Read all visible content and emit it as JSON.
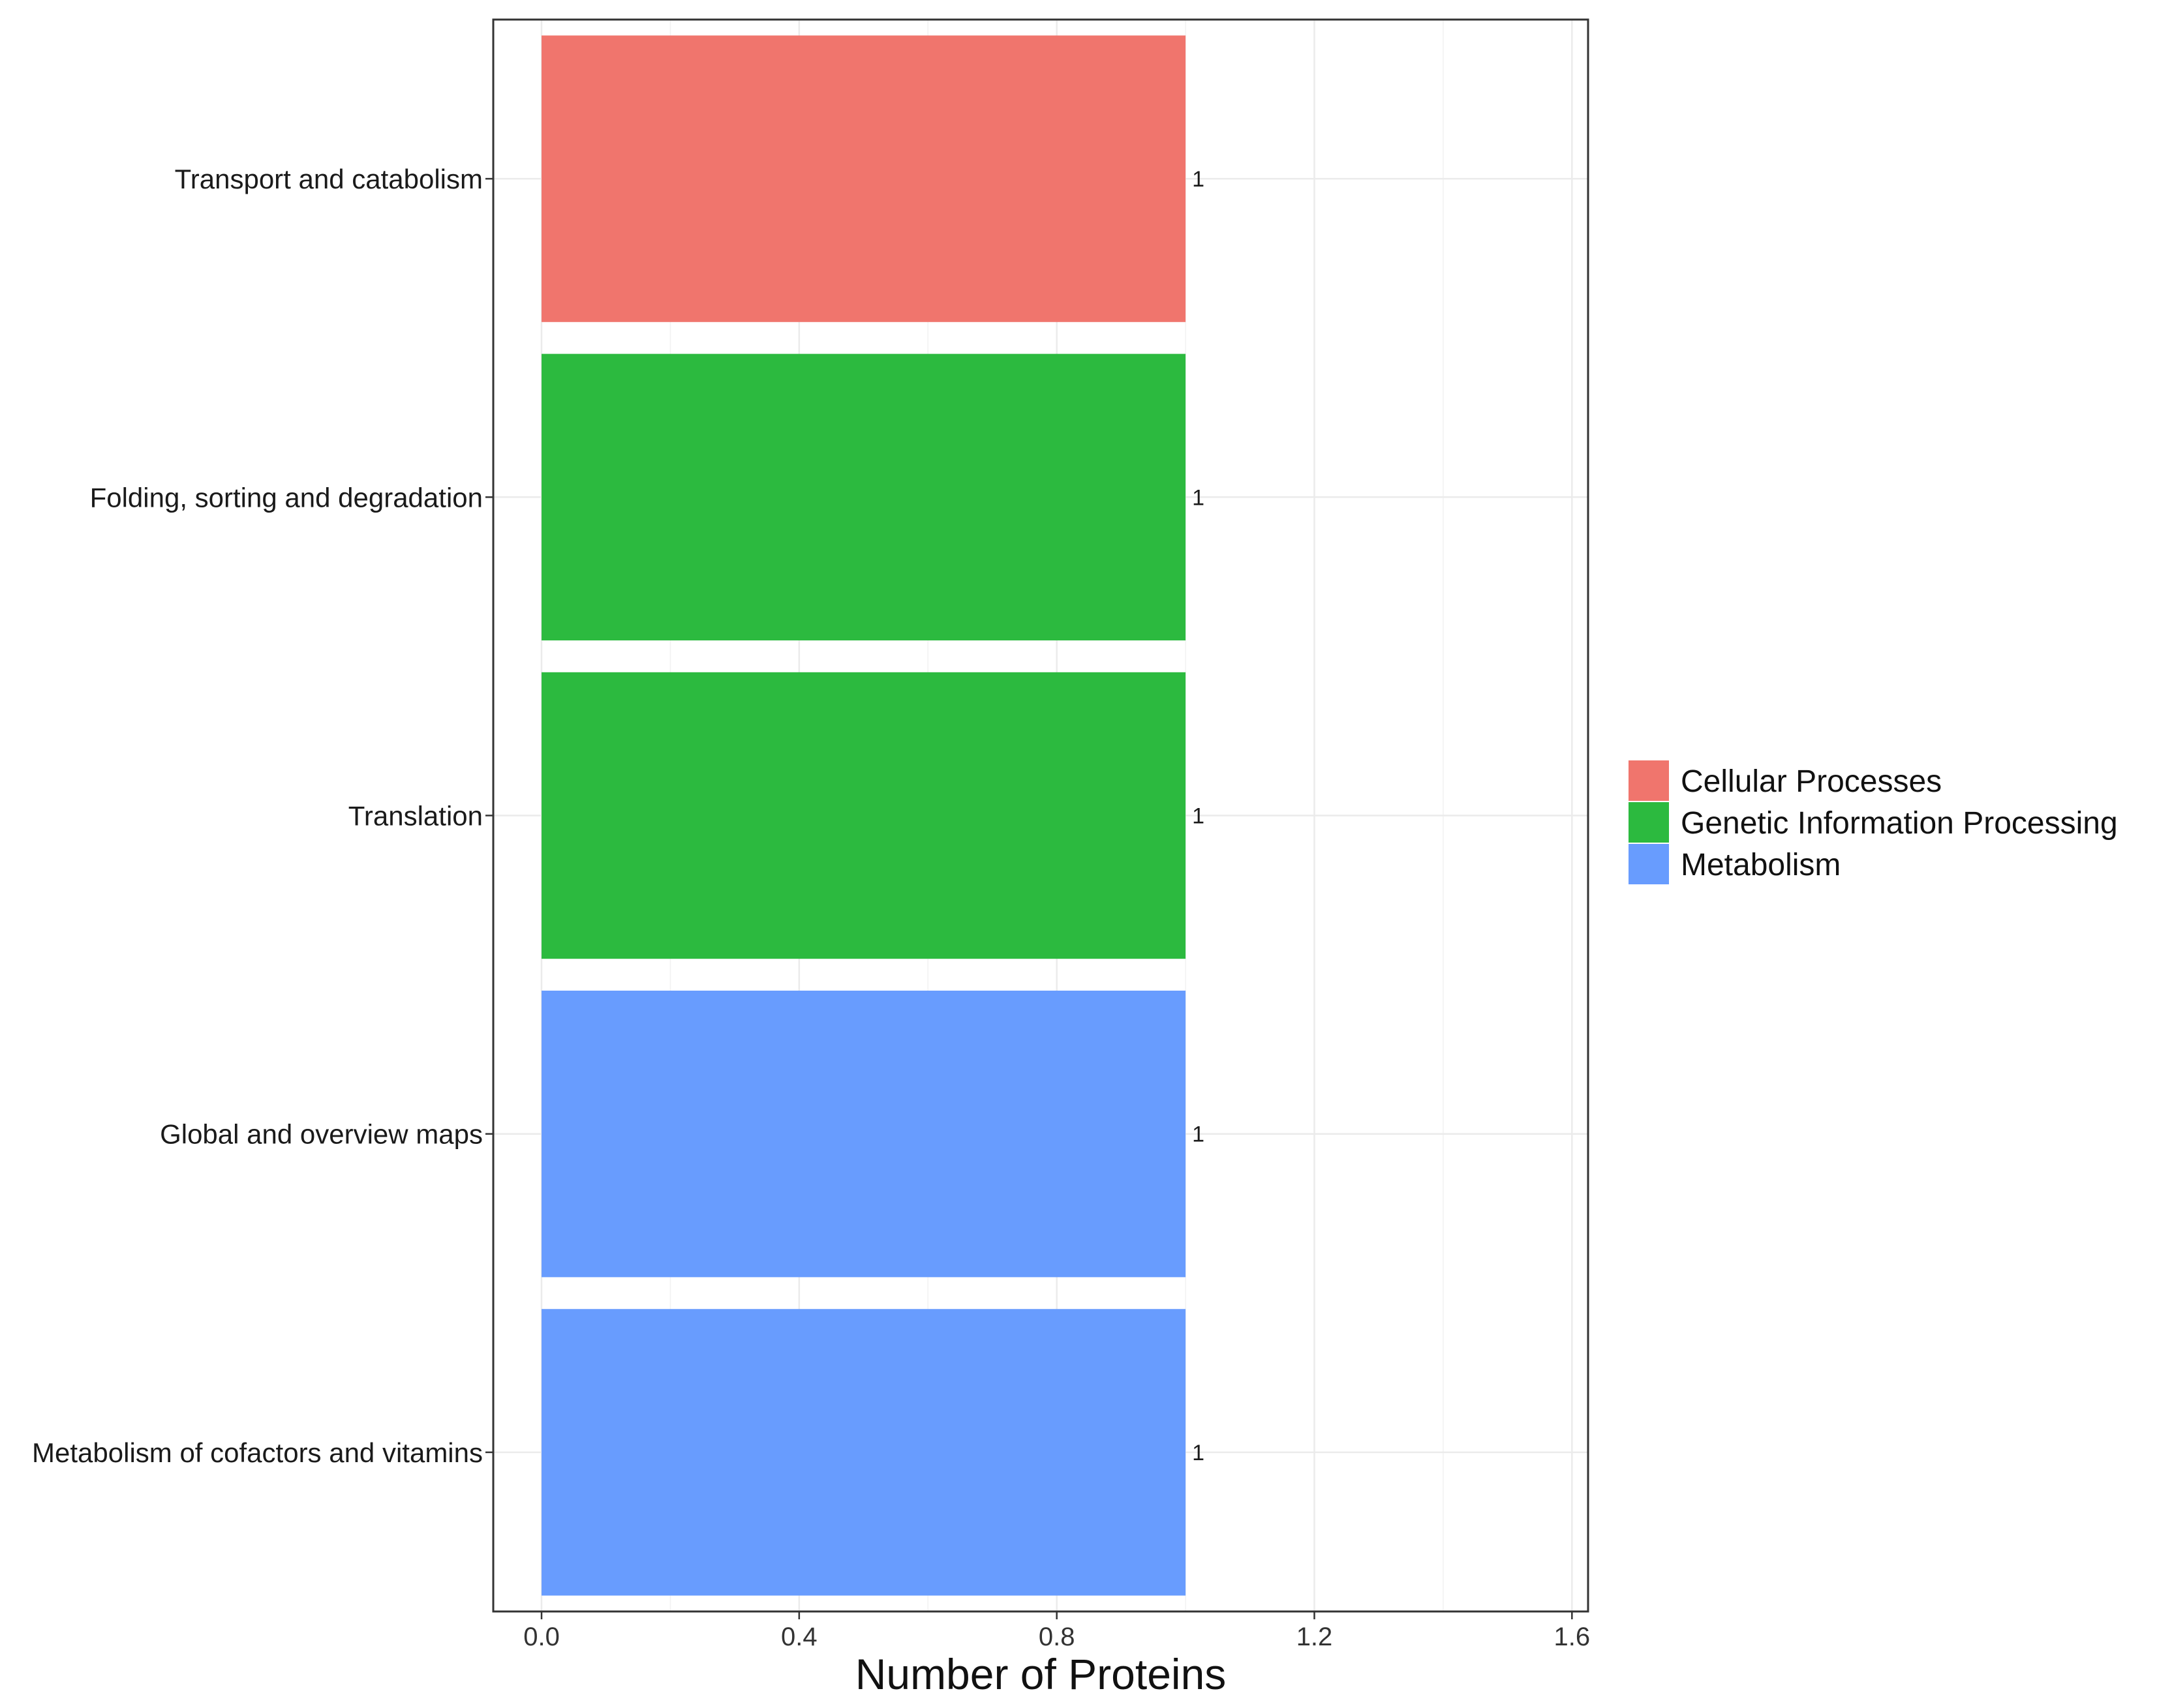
{
  "chart_data": {
    "type": "bar",
    "orientation": "horizontal",
    "categories": [
      "Transport and catabolism",
      "Folding, sorting and degradation",
      "Translation",
      "Global and overview maps",
      "Metabolism of cofactors and vitamins"
    ],
    "values": [
      1,
      1,
      1,
      1,
      1
    ],
    "data_labels": [
      "1",
      "1",
      "1",
      "1",
      "1"
    ],
    "bar_groups": [
      "Cellular Processes",
      "Genetic Information Processing",
      "Genetic Information Processing",
      "Metabolism",
      "Metabolism"
    ],
    "legend": [
      {
        "name": "Cellular Processes",
        "color": "#F0756D"
      },
      {
        "name": "Genetic Information Processing",
        "color": "#2CBA3F"
      },
      {
        "name": "Metabolism",
        "color": "#689CFE"
      }
    ],
    "legend_position": "right",
    "xlabel": "Number of Proteins",
    "ylabel": "",
    "title": "",
    "xlim": [
      -0.075,
      1.625
    ],
    "x_ticks": [
      0.0,
      0.4,
      0.8,
      1.2,
      1.6
    ],
    "x_tick_labels": [
      "0.0",
      "0.4",
      "0.8",
      "1.2",
      "1.6"
    ],
    "grid": true
  }
}
